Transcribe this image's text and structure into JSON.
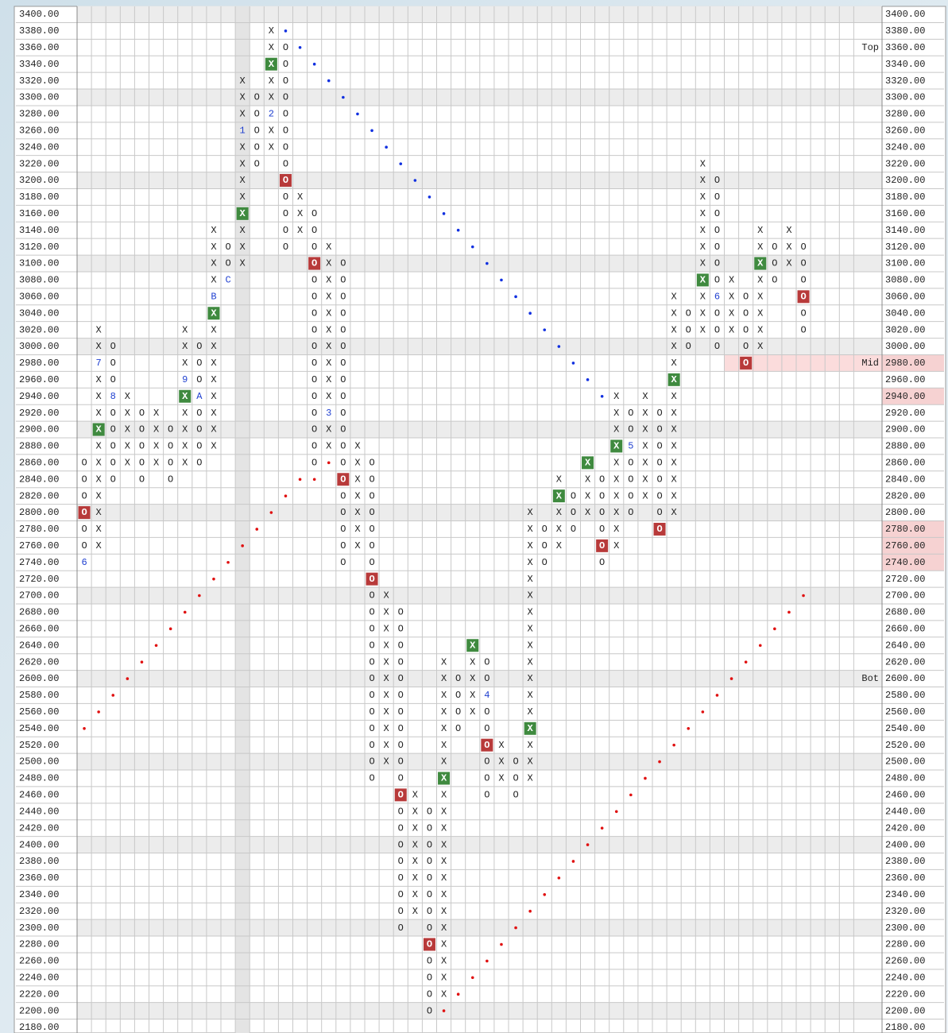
{
  "chart_data": {
    "type": "point_and_figure",
    "box_size": 20,
    "ylim": [
      2180,
      3400
    ],
    "yticks": [
      {
        "value": 3400,
        "label": "3400.00"
      },
      {
        "value": 3380,
        "label": "3380.00"
      },
      {
        "value": 3360,
        "label": "3360.00"
      },
      {
        "value": 3340,
        "label": "3340.00"
      },
      {
        "value": 3320,
        "label": "3320.00"
      },
      {
        "value": 3300,
        "label": "3300.00"
      },
      {
        "value": 3280,
        "label": "3280.00"
      },
      {
        "value": 3260,
        "label": "3260.00"
      },
      {
        "value": 3240,
        "label": "3240.00"
      },
      {
        "value": 3220,
        "label": "3220.00"
      },
      {
        "value": 3200,
        "label": "3200.00"
      },
      {
        "value": 3180,
        "label": "3180.00"
      },
      {
        "value": 3160,
        "label": "3160.00"
      },
      {
        "value": 3140,
        "label": "3140.00"
      },
      {
        "value": 3120,
        "label": "3120.00"
      },
      {
        "value": 3100,
        "label": "3100.00"
      },
      {
        "value": 3080,
        "label": "3080.00"
      },
      {
        "value": 3060,
        "label": "3060.00"
      },
      {
        "value": 3040,
        "label": "3040.00"
      },
      {
        "value": 3020,
        "label": "3020.00"
      },
      {
        "value": 3000,
        "label": "3000.00"
      },
      {
        "value": 2980,
        "label": "2980.00"
      },
      {
        "value": 2960,
        "label": "2960.00"
      },
      {
        "value": 2940,
        "label": "2940.00"
      },
      {
        "value": 2920,
        "label": "2920.00"
      },
      {
        "value": 2900,
        "label": "2900.00"
      },
      {
        "value": 2880,
        "label": "2880.00"
      },
      {
        "value": 2860,
        "label": "2860.00"
      },
      {
        "value": 2840,
        "label": "2840.00"
      },
      {
        "value": 2820,
        "label": "2820.00"
      },
      {
        "value": 2800,
        "label": "2800.00"
      },
      {
        "value": 2780,
        "label": "2780.00"
      },
      {
        "value": 2760,
        "label": "2760.00"
      },
      {
        "value": 2740,
        "label": "2740.00"
      },
      {
        "value": 2720,
        "label": "2720.00"
      },
      {
        "value": 2700,
        "label": "2700.00"
      },
      {
        "value": 2680,
        "label": "2680.00"
      },
      {
        "value": 2660,
        "label": "2660.00"
      },
      {
        "value": 2640,
        "label": "2640.00"
      },
      {
        "value": 2620,
        "label": "2620.00"
      },
      {
        "value": 2600,
        "label": "2600.00"
      },
      {
        "value": 2580,
        "label": "2580.00"
      },
      {
        "value": 2560,
        "label": "2560.00"
      },
      {
        "value": 2540,
        "label": "2540.00"
      },
      {
        "value": 2520,
        "label": "2520.00"
      },
      {
        "value": 2500,
        "label": "2500.00"
      },
      {
        "value": 2480,
        "label": "2480.00"
      },
      {
        "value": 2460,
        "label": "2460.00"
      },
      {
        "value": 2440,
        "label": "2440.00"
      },
      {
        "value": 2420,
        "label": "2420.00"
      },
      {
        "value": 2400,
        "label": "2400.00"
      },
      {
        "value": 2380,
        "label": "2380.00"
      },
      {
        "value": 2360,
        "label": "2360.00"
      },
      {
        "value": 2340,
        "label": "2340.00"
      },
      {
        "value": 2320,
        "label": "2320.00"
      },
      {
        "value": 2300,
        "label": "2300.00"
      },
      {
        "value": 2280,
        "label": "2280.00"
      },
      {
        "value": 2260,
        "label": "2260.00"
      },
      {
        "value": 2240,
        "label": "2240.00"
      },
      {
        "value": 2220,
        "label": "2220.00"
      },
      {
        "value": 2200,
        "label": "2200.00"
      },
      {
        "value": 2180,
        "label": "2180.00"
      }
    ],
    "highlighted_levels": [
      2980,
      2940,
      2780,
      2760,
      2740
    ],
    "shaded_columns": [
      11
    ],
    "x_box_color": "#3f8a3f",
    "o_box_color": "#b83a3a",
    "label_color": "#2040d0",
    "columns": [
      {
        "type": "O",
        "from": 2860,
        "to": 2740,
        "boxed": [
          2800
        ],
        "labels": [
          {
            "value": 2740,
            "label": "6"
          }
        ]
      },
      {
        "type": "X",
        "from": 2760,
        "to": 3020,
        "boxed": [
          2900
        ],
        "labels": [
          {
            "value": 2980,
            "label": "7"
          }
        ]
      },
      {
        "type": "O",
        "from": 3000,
        "to": 2840,
        "boxed": [],
        "labels": [
          {
            "value": 2940,
            "label": "8"
          }
        ]
      },
      {
        "type": "X",
        "from": 2860,
        "to": 2940,
        "boxed": [],
        "labels": []
      },
      {
        "type": "O",
        "from": 2920,
        "to": 2840,
        "boxed": [],
        "labels": []
      },
      {
        "type": "X",
        "from": 2860,
        "to": 2920,
        "boxed": [],
        "labels": []
      },
      {
        "type": "O",
        "from": 2900,
        "to": 2840,
        "boxed": [],
        "labels": []
      },
      {
        "type": "X",
        "from": 2860,
        "to": 3020,
        "boxed": [
          2940
        ],
        "labels": [
          {
            "value": 2960,
            "label": "9"
          }
        ]
      },
      {
        "type": "O",
        "from": 3000,
        "to": 2860,
        "boxed": [],
        "labels": [
          {
            "value": 2940,
            "label": "A"
          }
        ]
      },
      {
        "type": "X",
        "from": 2880,
        "to": 3140,
        "boxed": [
          3040
        ],
        "labels": [
          {
            "value": 3060,
            "label": "B"
          }
        ]
      },
      {
        "type": "O",
        "from": 3120,
        "to": 3080,
        "boxed": [],
        "labels": [
          {
            "value": 3080,
            "label": "C"
          }
        ]
      },
      {
        "type": "X",
        "from": 3100,
        "to": 3320,
        "boxed": [
          3160
        ],
        "labels": [
          {
            "value": 3260,
            "label": "1"
          }
        ]
      },
      {
        "type": "O",
        "from": 3300,
        "to": 3220,
        "boxed": [],
        "labels": []
      },
      {
        "type": "X",
        "from": 3240,
        "to": 3380,
        "boxed": [
          3340
        ],
        "labels": [
          {
            "value": 3280,
            "label": "2"
          }
        ]
      },
      {
        "type": "O",
        "from": 3360,
        "to": 3120,
        "boxed": [
          3200
        ],
        "labels": []
      },
      {
        "type": "X",
        "from": 3140,
        "to": 3180,
        "boxed": [],
        "labels": []
      },
      {
        "type": "O",
        "from": 3160,
        "to": 2860,
        "boxed": [
          3100
        ],
        "labels": []
      },
      {
        "type": "X",
        "from": 2880,
        "to": 3120,
        "boxed": [],
        "labels": [
          {
            "value": 2920,
            "label": "3"
          }
        ]
      },
      {
        "type": "O",
        "from": 3100,
        "to": 2740,
        "boxed": [
          2840
        ],
        "labels": []
      },
      {
        "type": "X",
        "from": 2760,
        "to": 2880,
        "boxed": [],
        "labels": []
      },
      {
        "type": "O",
        "from": 2860,
        "to": 2480,
        "boxed": [
          2720
        ],
        "labels": []
      },
      {
        "type": "X",
        "from": 2500,
        "to": 2700,
        "boxed": [],
        "labels": []
      },
      {
        "type": "O",
        "from": 2680,
        "to": 2300,
        "boxed": [
          2460
        ],
        "labels": []
      },
      {
        "type": "X",
        "from": 2320,
        "to": 2460,
        "boxed": [],
        "labels": []
      },
      {
        "type": "O",
        "from": 2440,
        "to": 2200,
        "boxed": [
          2280
        ],
        "labels": []
      },
      {
        "type": "X",
        "from": 2220,
        "to": 2620,
        "boxed": [
          2480
        ],
        "labels": []
      },
      {
        "type": "O",
        "from": 2600,
        "to": 2540,
        "boxed": [],
        "labels": []
      },
      {
        "type": "X",
        "from": 2560,
        "to": 2640,
        "boxed": [
          2640
        ],
        "labels": []
      },
      {
        "type": "O",
        "from": 2620,
        "to": 2460,
        "boxed": [
          2520
        ],
        "labels": [
          {
            "value": 2580,
            "label": "4"
          }
        ]
      },
      {
        "type": "X",
        "from": 2480,
        "to": 2520,
        "boxed": [],
        "labels": []
      },
      {
        "type": "O",
        "from": 2500,
        "to": 2460,
        "boxed": [],
        "labels": []
      },
      {
        "type": "X",
        "from": 2480,
        "to": 2800,
        "boxed": [
          2540
        ],
        "labels": []
      },
      {
        "type": "O",
        "from": 2780,
        "to": 2740,
        "boxed": [],
        "labels": []
      },
      {
        "type": "X",
        "from": 2760,
        "to": 2840,
        "boxed": [
          2820
        ],
        "labels": []
      },
      {
        "type": "O",
        "from": 2820,
        "to": 2780,
        "boxed": [],
        "labels": []
      },
      {
        "type": "X",
        "from": 2800,
        "to": 2860,
        "boxed": [
          2860
        ],
        "labels": []
      },
      {
        "type": "O",
        "from": 2840,
        "to": 2740,
        "boxed": [
          2760
        ],
        "labels": []
      },
      {
        "type": "X",
        "from": 2760,
        "to": 2940,
        "boxed": [
          2880
        ],
        "labels": []
      },
      {
        "type": "O",
        "from": 2920,
        "to": 2800,
        "boxed": [],
        "labels": [
          {
            "value": 2880,
            "label": "5"
          }
        ]
      },
      {
        "type": "X",
        "from": 2820,
        "to": 2940,
        "boxed": [],
        "labels": []
      },
      {
        "type": "O",
        "from": 2920,
        "to": 2780,
        "boxed": [
          2780
        ],
        "labels": []
      },
      {
        "type": "X",
        "from": 2800,
        "to": 3060,
        "boxed": [
          2960
        ],
        "labels": []
      },
      {
        "type": "O",
        "from": 3040,
        "to": 3000,
        "boxed": [],
        "labels": []
      },
      {
        "type": "X",
        "from": 3020,
        "to": 3220,
        "boxed": [
          3080
        ],
        "labels": []
      },
      {
        "type": "O",
        "from": 3200,
        "to": 3000,
        "boxed": [],
        "labels": [
          {
            "value": 3060,
            "label": "6"
          }
        ]
      },
      {
        "type": "X",
        "from": 3020,
        "to": 3080,
        "boxed": [],
        "labels": []
      },
      {
        "type": "O",
        "from": 3060,
        "to": 2980,
        "boxed": [
          2980
        ],
        "labels": []
      },
      {
        "type": "X",
        "from": 3000,
        "to": 3140,
        "boxed": [
          3100
        ],
        "labels": []
      },
      {
        "type": "O",
        "from": 3120,
        "to": 3080,
        "boxed": [],
        "labels": []
      },
      {
        "type": "X",
        "from": 3100,
        "to": 3140,
        "boxed": [],
        "labels": []
      },
      {
        "type": "O",
        "from": 3120,
        "to": 3020,
        "boxed": [
          3060
        ],
        "labels": []
      }
    ],
    "trend_lines": [
      {
        "color": "#1030e0",
        "columns": [
          14,
          15,
          16,
          17,
          18,
          19,
          20,
          21,
          22,
          23,
          24,
          25,
          26,
          27,
          28,
          29,
          30,
          31,
          32,
          33,
          34,
          35,
          36
        ],
        "values": [
          3380,
          3360,
          3340,
          3320,
          3300,
          3280,
          3260,
          3240,
          3220,
          3200,
          3180,
          3160,
          3140,
          3120,
          3100,
          3080,
          3060,
          3040,
          3020,
          3000,
          2980,
          2960,
          2940
        ]
      },
      {
        "color": "#e01010",
        "columns": [
          0,
          1,
          2,
          3,
          4,
          5,
          6,
          7,
          8,
          9,
          10,
          11,
          12,
          13,
          14,
          15,
          16,
          17
        ],
        "values": [
          2540,
          2560,
          2580,
          2600,
          2620,
          2640,
          2660,
          2680,
          2700,
          2720,
          2740,
          2760,
          2780,
          2800,
          2820,
          2840,
          2840,
          2860
        ]
      },
      {
        "color": "#e01010",
        "columns": [
          25,
          26,
          27,
          28,
          29,
          30,
          31,
          32,
          33,
          34,
          35,
          36,
          37,
          38,
          39,
          40,
          41,
          42,
          43,
          44,
          45,
          46,
          47,
          48,
          49,
          50
        ],
        "values": [
          2200,
          2220,
          2240,
          2260,
          2280,
          2300,
          2320,
          2340,
          2360,
          2380,
          2400,
          2420,
          2440,
          2460,
          2480,
          2500,
          2520,
          2540,
          2560,
          2580,
          2600,
          2620,
          2640,
          2660,
          2680,
          2700
        ]
      }
    ],
    "annotations": [
      {
        "label": "Top",
        "value": 3360
      },
      {
        "label": "Mid",
        "value": 2980,
        "highlight_from_column": 45
      },
      {
        "label": "Bot",
        "value": 2600
      }
    ]
  }
}
